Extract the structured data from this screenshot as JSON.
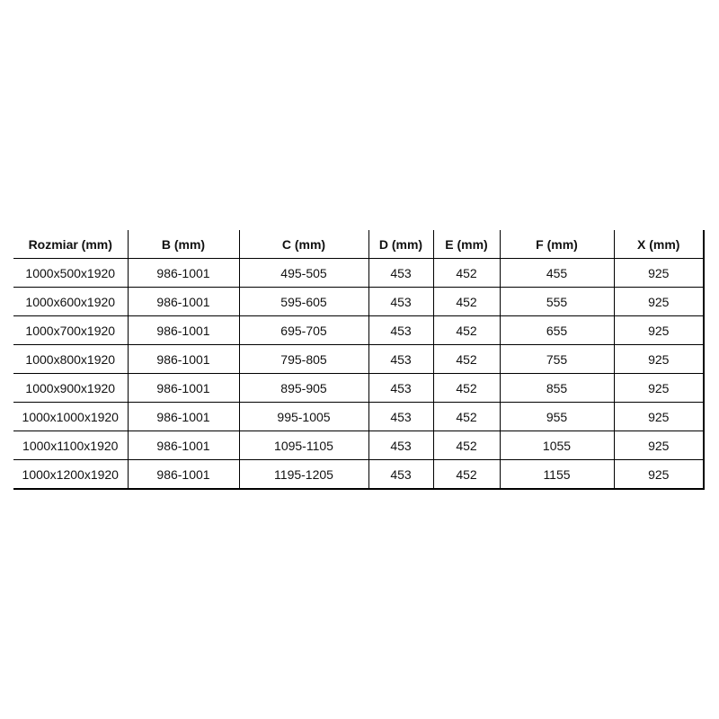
{
  "table": {
    "headers": [
      "Rozmiar (mm)",
      "B (mm)",
      "C (mm)",
      "D (mm)",
      "E (mm)",
      "F (mm)",
      "X (mm)"
    ],
    "rows": [
      [
        "1000x500x1920",
        "986-1001",
        "495-505",
        "453",
        "452",
        "455",
        "925"
      ],
      [
        "1000x600x1920",
        "986-1001",
        "595-605",
        "453",
        "452",
        "555",
        "925"
      ],
      [
        "1000x700x1920",
        "986-1001",
        "695-705",
        "453",
        "452",
        "655",
        "925"
      ],
      [
        "1000x800x1920",
        "986-1001",
        "795-805",
        "453",
        "452",
        "755",
        "925"
      ],
      [
        "1000x900x1920",
        "986-1001",
        "895-905",
        "453",
        "452",
        "855",
        "925"
      ],
      [
        "1000x1000x1920",
        "986-1001",
        "995-1005",
        "453",
        "452",
        "955",
        "925"
      ],
      [
        "1000x1100x1920",
        "986-1001",
        "1095-1105",
        "453",
        "452",
        "1055",
        "925"
      ],
      [
        "1000x1200x1920",
        "986-1001",
        "1195-1205",
        "453",
        "452",
        "1155",
        "925"
      ]
    ]
  }
}
